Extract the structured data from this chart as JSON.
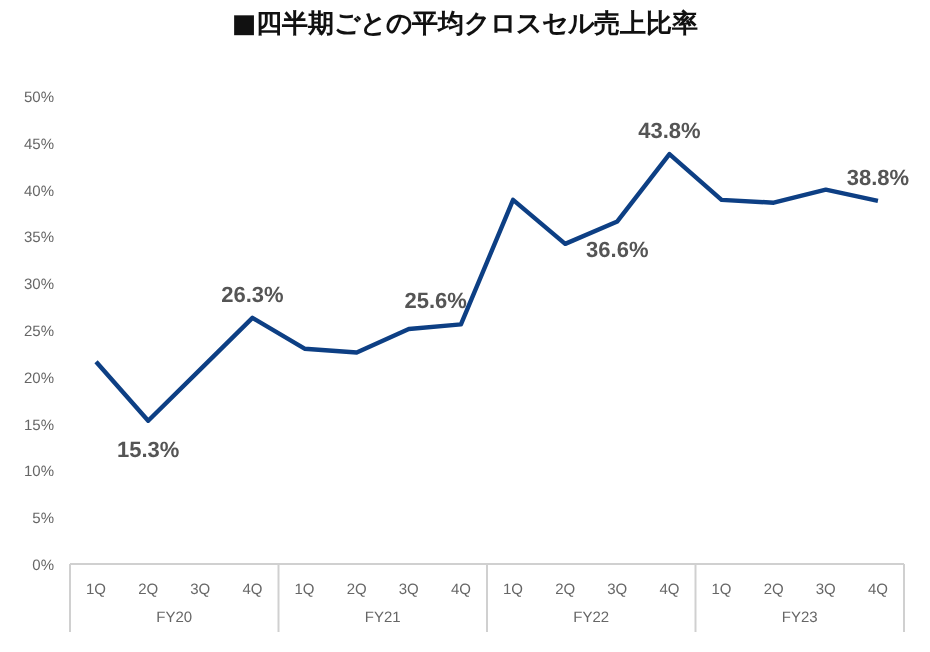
{
  "chart_data": {
    "type": "line",
    "title": "■四半期ごとの平均クロスセル売上比率",
    "categories": [
      "1Q",
      "2Q",
      "3Q",
      "4Q",
      "1Q",
      "2Q",
      "3Q",
      "4Q",
      "1Q",
      "2Q",
      "3Q",
      "4Q",
      "1Q",
      "2Q",
      "3Q",
      "4Q"
    ],
    "series": [
      {
        "color": "#0d3f84",
        "values": [
          21.6,
          15.3,
          20.8,
          26.3,
          23.0,
          22.6,
          25.1,
          25.6,
          38.9,
          34.2,
          36.6,
          43.8,
          38.9,
          38.6,
          40.0,
          38.8
        ],
        "value_labels": [
          null,
          "15.3%",
          null,
          "26.3%",
          null,
          null,
          null,
          "25.6%",
          null,
          null,
          "36.6%",
          "43.8%",
          null,
          null,
          null,
          "38.8%"
        ]
      }
    ],
    "annotations": [
      "FY20",
      "FY21",
      "FY22",
      "FY23"
    ],
    "ylim": [
      0,
      50
    ],
    "yticks": [
      {
        "value": 0,
        "label": "0%"
      },
      {
        "value": 5,
        "label": "5%"
      },
      {
        "value": 10,
        "label": "10%"
      },
      {
        "value": 15,
        "label": "15%"
      },
      {
        "value": 20,
        "label": "20%"
      },
      {
        "value": 25,
        "label": "25%"
      },
      {
        "value": 30,
        "label": "30%"
      },
      {
        "value": 35,
        "label": "35%"
      },
      {
        "value": 40,
        "label": "40%"
      },
      {
        "value": 45,
        "label": "45%"
      },
      {
        "value": 50,
        "label": "50%"
      }
    ],
    "grid": false,
    "marker": "none",
    "line_style": "solid"
  }
}
